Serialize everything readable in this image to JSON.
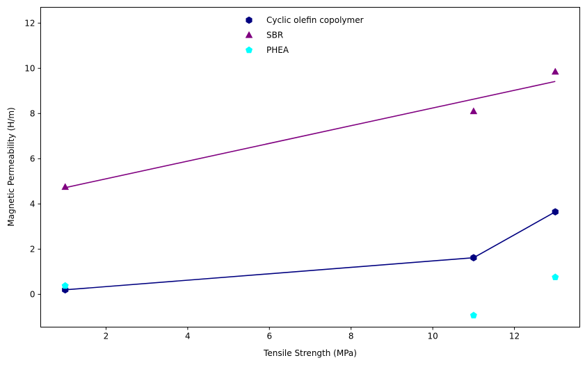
{
  "chart_data": {
    "type": "scatter",
    "title": "",
    "xlabel": "Tensile Strength (MPa)",
    "ylabel": "Magnetic Permeability (H/m)",
    "xlim": [
      0.4,
      13.6
    ],
    "ylim": [
      -1.45,
      12.7
    ],
    "xticks": [
      2,
      4,
      6,
      8,
      10,
      12
    ],
    "yticks": [
      0,
      2,
      4,
      6,
      8,
      10,
      12
    ],
    "grid": false,
    "legend_position": "upper-center",
    "series": [
      {
        "name": "Cyclic olefin copolymer",
        "color": "#000080",
        "marker": "hexagon",
        "x": [
          1,
          11,
          13
        ],
        "y": [
          0.2,
          1.62,
          3.65
        ],
        "line": {
          "x": [
            1,
            11,
            13
          ],
          "y": [
            0.2,
            1.62,
            3.65
          ]
        }
      },
      {
        "name": "SBR",
        "color": "#800080",
        "marker": "triangle",
        "x": [
          1,
          11,
          13
        ],
        "y": [
          4.75,
          8.1,
          9.85
        ],
        "line": {
          "x": [
            1,
            13
          ],
          "y": [
            4.72,
            9.42
          ]
        }
      },
      {
        "name": "PHEA",
        "color": "#00ffff",
        "marker": "pentagon",
        "x": [
          1,
          11,
          13
        ],
        "y": [
          0.38,
          -0.93,
          0.76
        ],
        "line": null
      }
    ]
  }
}
